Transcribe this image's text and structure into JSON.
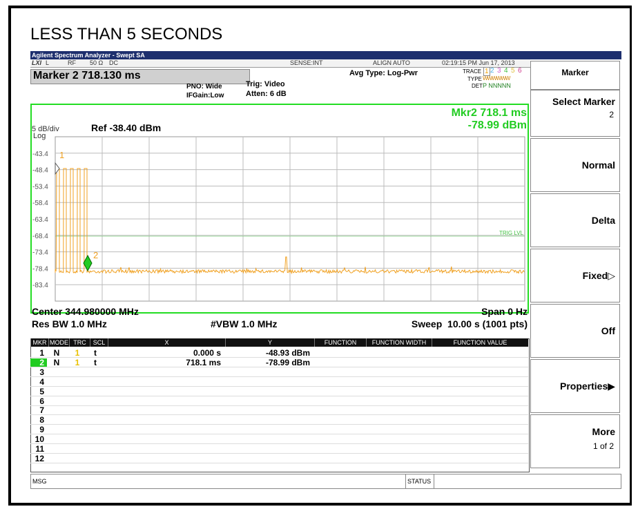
{
  "page_title": "LESS THAN 5 SECONDS",
  "app_header": "Agilent Spectrum Analyzer - Swept SA",
  "status_bar": [
    "LXI",
    "L",
    "RF",
    "50 Ω",
    "DC",
    "SENSE:INT",
    "ALIGN AUTO",
    "02:19:15 PM Jun 17, 2013"
  ],
  "marker_readout": "Marker 2 718.130 ms",
  "settings": {
    "pno": "PNO: Wide",
    "ifgain": "IFGain:Low",
    "trig": "Trig: Video",
    "atten": "Atten: 6 dB",
    "avg": "Avg Type: Log-Pwr"
  },
  "trace_panel": {
    "trace_label": "TRACE",
    "traces": [
      "1",
      "2",
      "3",
      "4",
      "5",
      "6"
    ],
    "type_label": "TYPE",
    "type": "WWWWWW",
    "det_label": "DET",
    "det": "P NNNNN"
  },
  "menu": {
    "title": "Marker",
    "buttons": [
      {
        "label": "Select Marker",
        "sub": "2"
      },
      {
        "label": "Normal"
      },
      {
        "label": "Delta"
      },
      {
        "label": "Fixed▷"
      },
      {
        "label": "Off"
      },
      {
        "label": "Properties▶"
      },
      {
        "label": "More",
        "sub": "1 of 2"
      }
    ]
  },
  "plot": {
    "mkr_x": "Mkr2 718.1 ms",
    "mkr_y": "-78.99 dBm",
    "scale": "5 dB/div",
    "scale_type": "Log",
    "ref": "Ref -38.40 dBm",
    "y_labels": [
      "-43.4",
      "-48.4",
      "-53.4",
      "-58.4",
      "-63.4",
      "-68.4",
      "-73.4",
      "-78.4",
      "-83.4"
    ],
    "trig_lvl": "TRIG LVL",
    "markers": [
      "1",
      "2"
    ]
  },
  "footer": {
    "center": "Center 344.980000 MHz",
    "span": "Span 0 Hz",
    "rbw": "Res BW 1.0 MHz",
    "vbw": "#VBW 1.0 MHz",
    "sweep": "Sweep  10.00 s (1001 pts)"
  },
  "table": {
    "headers": [
      "MKR",
      "MODE",
      "TRC",
      "SCL",
      "X",
      "Y",
      "FUNCTION",
      "FUNCTION WIDTH",
      "FUNCTION VALUE"
    ],
    "rows": [
      [
        "1",
        "N",
        "1",
        "t",
        "0.000 s",
        "-48.93 dBm"
      ],
      [
        "2",
        "N",
        "1",
        "t",
        "718.1 ms",
        "-78.99 dBm"
      ],
      [
        "3"
      ],
      [
        "4"
      ],
      [
        "5"
      ],
      [
        "6"
      ],
      [
        "7"
      ],
      [
        "8"
      ],
      [
        "9"
      ],
      [
        "10"
      ],
      [
        "11"
      ],
      [
        "12"
      ]
    ]
  },
  "msg_bar": {
    "msg": "MSG",
    "status": "STATUS"
  }
}
